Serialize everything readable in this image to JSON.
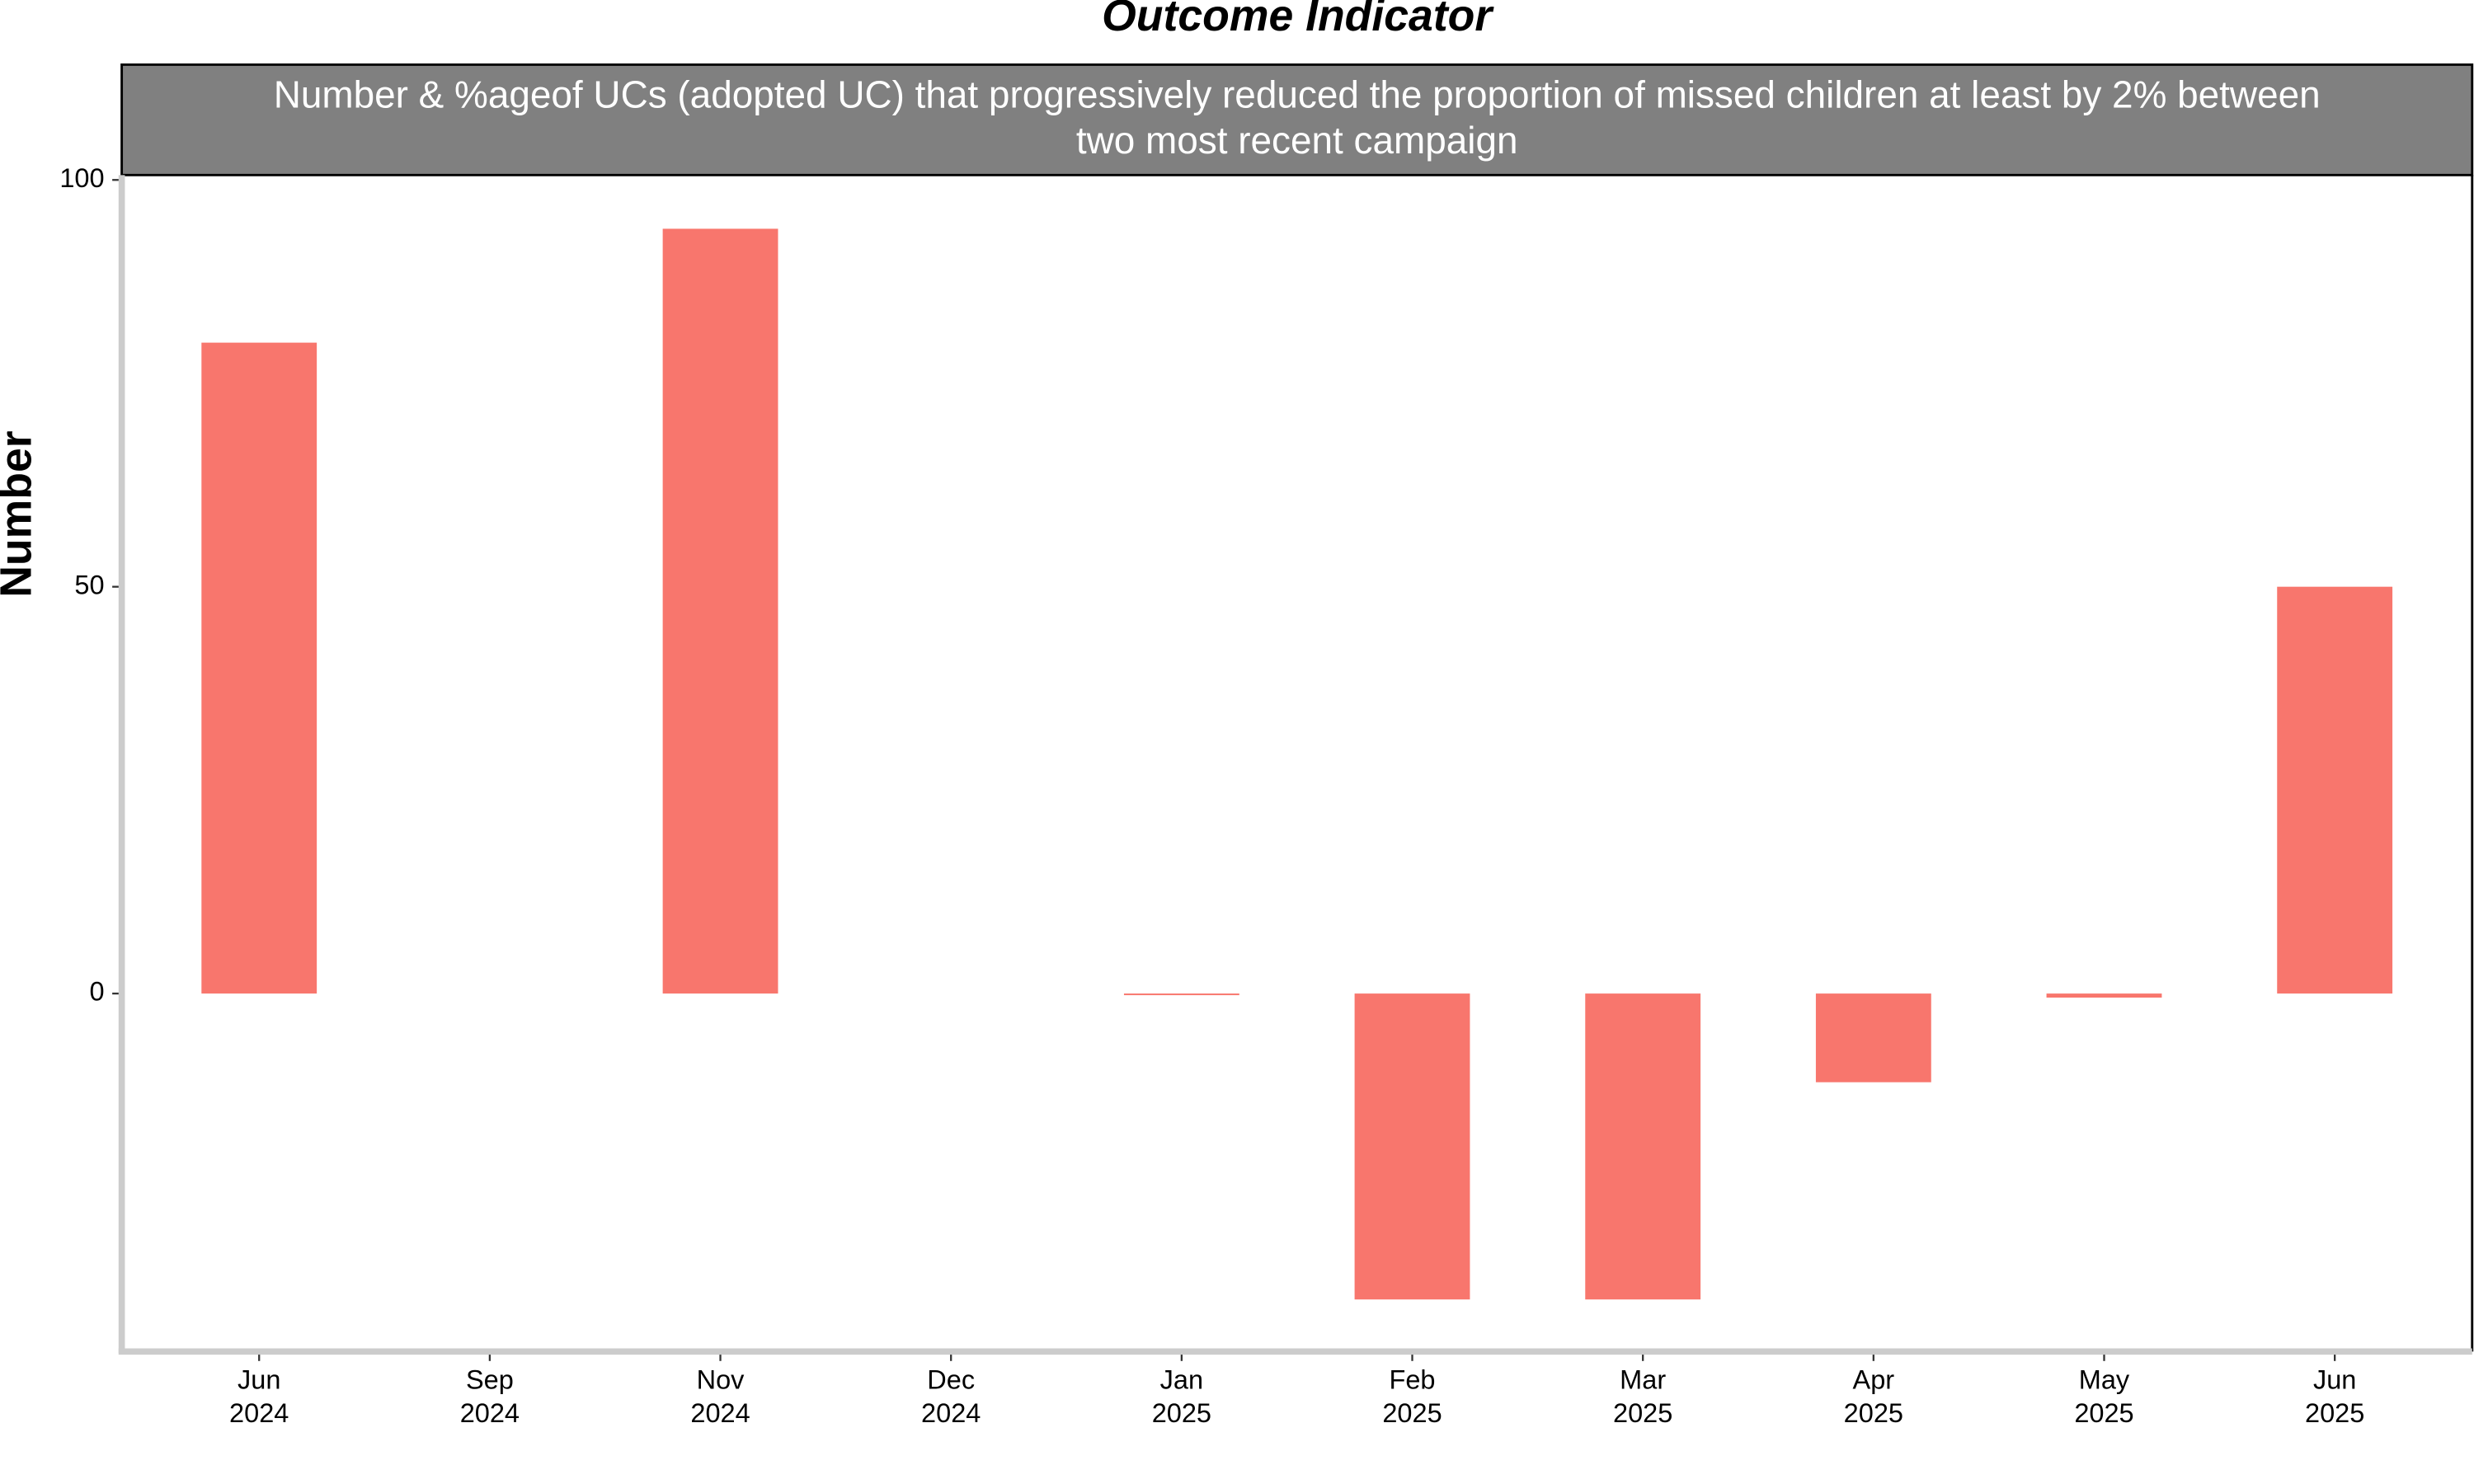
{
  "chart_data": {
    "type": "bar",
    "title": "Outcome Indicator",
    "subtitle": [
      "Number & %ageof UCs (adopted UC) that progressively reduced the proportion of missed children at least by 2% between",
      "two most recent campaign"
    ],
    "y_label": "Number",
    "categories": [
      "Jun 2024",
      "Sep 2024",
      "Nov 2024",
      "Dec 2024",
      "Jan 2025",
      "Feb 2025",
      "Mar 2025",
      "Apr 2025",
      "May 2025",
      "Jun 2025"
    ],
    "values": [
      80,
      null,
      94,
      null,
      -0.2,
      -37.6,
      -37.6,
      -10.9,
      -0.5,
      50
    ],
    "color": "#f8766d",
    "ylim": [
      -44,
      100.6
    ],
    "yticks": [
      0,
      50,
      100
    ]
  }
}
